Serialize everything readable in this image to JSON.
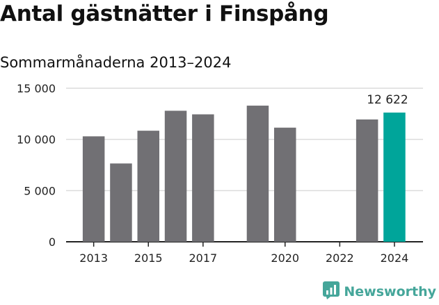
{
  "header": {
    "title": "Antal gästnätter i Finspång",
    "subtitle": "Sommarmånaderna 2013–2024"
  },
  "brand": {
    "name": "Newsworthy",
    "icon": "chart-icon",
    "color": "#45a69a"
  },
  "chart_data": {
    "type": "bar",
    "categories": [
      "2013",
      "2014",
      "2015",
      "2016",
      "2017",
      "2018",
      "2019",
      "2020",
      "2021",
      "2022",
      "2023",
      "2024"
    ],
    "values": [
      10300,
      7650,
      10850,
      12800,
      12450,
      null,
      13300,
      11150,
      null,
      null,
      11950,
      12622
    ],
    "x_tick_labels": [
      "2013",
      "2015",
      "2017",
      "2020",
      "2022",
      "2024"
    ],
    "y_ticks": [
      0,
      5000,
      10000,
      15000
    ],
    "y_tick_labels": [
      "0",
      "5 000",
      "10 000",
      "15 000"
    ],
    "ylim": [
      0,
      15000
    ],
    "highlight": {
      "category": "2024",
      "label": "12 622"
    },
    "grid": true,
    "colors": {
      "default": "#717074",
      "highlight": "#00a59a",
      "grid": "#dcdcdc",
      "axis": "#222222"
    }
  }
}
